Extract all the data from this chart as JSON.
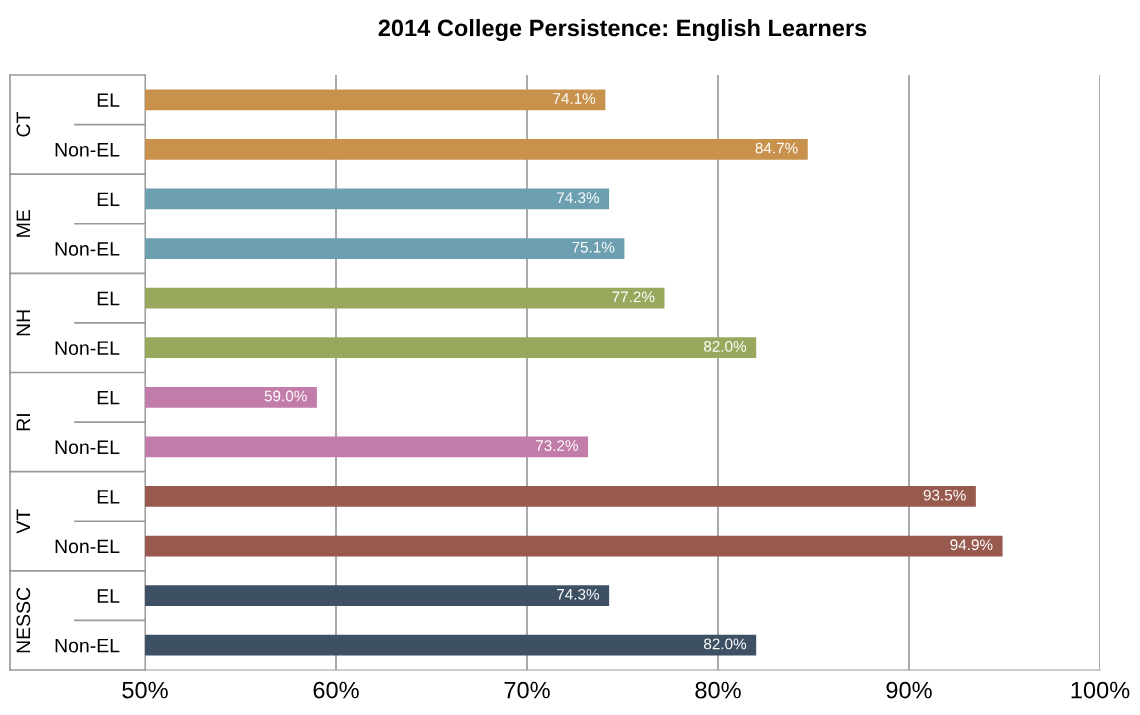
{
  "chart_data": {
    "type": "bar",
    "orientation": "horizontal",
    "title": "2014 College Persistence: English Learners",
    "categories": [
      "EL",
      "Non-EL",
      "EL",
      "Non-EL",
      "EL",
      "Non-EL",
      "EL",
      "Non-EL",
      "EL",
      "Non-EL",
      "EL",
      "Non-EL"
    ],
    "annotations": [
      "CT",
      "ME",
      "NH",
      "RI",
      "VT",
      "NESSC"
    ],
    "values": [
      74.1,
      84.7,
      74.3,
      75.1,
      77.2,
      82.0,
      59.0,
      73.2,
      93.5,
      94.9,
      74.3,
      82.0
    ],
    "value_labels": [
      "74.1%",
      "84.7%",
      "74.3%",
      "75.1%",
      "77.2%",
      "82.0%",
      "59.0%",
      "73.2%",
      "93.5%",
      "94.9%",
      "74.3%",
      "82.0%"
    ],
    "colors": [
      "#c8914c",
      "#c8914c",
      "#6c9fb0",
      "#6c9fb0",
      "#98a95e",
      "#98a95e",
      "#c27ca9",
      "#c27ca9",
      "#985a4f",
      "#985a4f",
      "#3d5064",
      "#3d5064"
    ],
    "xlim": [
      50,
      100
    ],
    "xticks": [
      {
        "value": 50,
        "label": "50%"
      },
      {
        "value": 60,
        "label": "60%"
      },
      {
        "value": 70,
        "label": "70%"
      },
      {
        "value": 80,
        "label": "80%"
      },
      {
        "value": 90,
        "label": "90%"
      },
      {
        "value": 100,
        "label": "100%"
      }
    ],
    "grid": "x",
    "legend": false
  }
}
